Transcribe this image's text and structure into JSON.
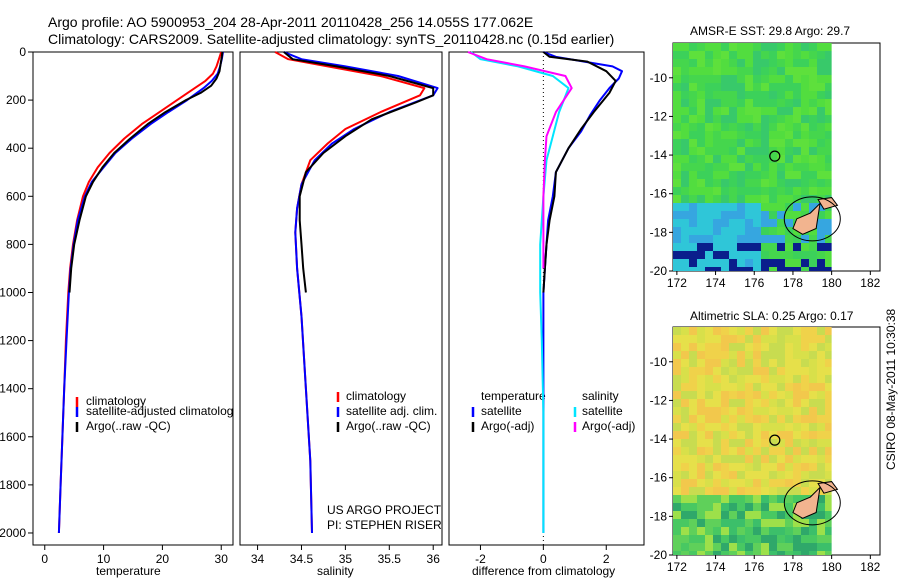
{
  "header": {
    "line1": "Argo profile: AO 5900953_204 28-Apr-2011 20110428_256 14.055S 177.062E",
    "line2": "Climatology: CARS2009. Satellite-adjusted climatology: synTS_20110428.nc (0.15d earlier)"
  },
  "credit": {
    "line1": "US ARGO PROJECT",
    "line2": "PI: STEPHEN RISER"
  },
  "stamp": "CSIRO 08-May-2011 10:30:38",
  "colors": {
    "climatology": "#ff0000",
    "satellite": "#0000ff",
    "argo": "#000000",
    "sal_satellite": "#00e5ff",
    "sal_argo": "#ff00ff",
    "marker": "#000000"
  },
  "chart_data": [
    {
      "type": "line",
      "id": "temperature",
      "xlabel": "temperature",
      "xlim": [
        -2,
        32
      ],
      "ylim": [
        2050,
        0
      ],
      "xticks": [
        0,
        10,
        20,
        30
      ],
      "xtick_labels": [
        "0",
        "10",
        "20",
        "30"
      ],
      "yticks": [
        0,
        200,
        400,
        600,
        800,
        1000,
        1200,
        1400,
        1600,
        1800,
        2000
      ],
      "ytick_labels": [
        "0",
        "200",
        "400",
        "600",
        "800",
        "1000",
        "1200",
        "1400",
        "1600",
        "1800",
        "2000"
      ],
      "legend": [
        "climatology",
        "satellite-adjusted climatolog",
        "Argo(..raw -QC)"
      ],
      "series": [
        {
          "name": "climatology",
          "color": "#ff0000",
          "points": [
            [
              30,
              0
            ],
            [
              29.6,
              30
            ],
            [
              29.2,
              60
            ],
            [
              28.6,
              90
            ],
            [
              27.3,
              120
            ],
            [
              25.5,
              150
            ],
            [
              22.5,
              200
            ],
            [
              19.5,
              250
            ],
            [
              16.5,
              300
            ],
            [
              13.5,
              360
            ],
            [
              11,
              420
            ],
            [
              9,
              480
            ],
            [
              7.5,
              540
            ],
            [
              6.5,
              600
            ],
            [
              5.5,
              700
            ],
            [
              4.8,
              800
            ],
            [
              4.3,
              900
            ],
            [
              4,
              1000
            ],
            [
              3.6,
              1200
            ],
            [
              3.3,
              1400
            ],
            [
              3,
              1600
            ],
            [
              2.7,
              1800
            ],
            [
              2.4,
              2000
            ]
          ]
        },
        {
          "name": "satellite-adjusted climatolog",
          "color": "#0000ff",
          "points": [
            [
              30.3,
              0
            ],
            [
              30.1,
              30
            ],
            [
              29.8,
              60
            ],
            [
              29.4,
              90
            ],
            [
              28.4,
              120
            ],
            [
              27,
              150
            ],
            [
              24.2,
              200
            ],
            [
              21,
              250
            ],
            [
              18,
              300
            ],
            [
              14.8,
              360
            ],
            [
              12,
              420
            ],
            [
              10,
              480
            ],
            [
              8,
              540
            ],
            [
              6.8,
              600
            ],
            [
              5.6,
              700
            ],
            [
              4.9,
              800
            ],
            [
              4.4,
              900
            ],
            [
              4.1,
              1000
            ],
            [
              3.7,
              1200
            ],
            [
              3.3,
              1400
            ],
            [
              3,
              1600
            ],
            [
              2.7,
              1800
            ],
            [
              2.4,
              2000
            ]
          ]
        },
        {
          "name": "Argo(..raw -QC)",
          "color": "#000000",
          "points": [
            [
              30.2,
              0
            ],
            [
              30.1,
              20
            ],
            [
              29.9,
              50
            ],
            [
              29.7,
              80
            ],
            [
              29.2,
              110
            ],
            [
              28.3,
              140
            ],
            [
              26.5,
              170
            ],
            [
              24,
              200
            ],
            [
              20.5,
              250
            ],
            [
              17.5,
              300
            ],
            [
              14.5,
              360
            ],
            [
              11.8,
              420
            ],
            [
              9.8,
              480
            ],
            [
              8.2,
              540
            ],
            [
              7,
              600
            ],
            [
              5.9,
              700
            ],
            [
              5,
              800
            ],
            [
              4.5,
              900
            ],
            [
              4.2,
              1000
            ]
          ]
        }
      ]
    },
    {
      "type": "line",
      "id": "salinity",
      "xlabel": "salinity",
      "xlim": [
        33.8,
        36.1
      ],
      "ylim": [
        2050,
        0
      ],
      "xticks": [
        34,
        34.5,
        35,
        35.5,
        36
      ],
      "xtick_labels": [
        "34",
        "34.5",
        "35",
        "35.5",
        "36"
      ],
      "legend": [
        "climatology",
        "satellite adj. clim.",
        "Argo(..raw -QC)"
      ],
      "series": [
        {
          "name": "climatology",
          "color": "#ff0000",
          "points": [
            [
              34.2,
              0
            ],
            [
              34.35,
              30
            ],
            [
              34.8,
              60
            ],
            [
              35.4,
              100
            ],
            [
              35.9,
              150
            ],
            [
              35.85,
              180
            ],
            [
              35.4,
              250
            ],
            [
              35.0,
              320
            ],
            [
              34.8,
              380
            ],
            [
              34.6,
              450
            ],
            [
              34.5,
              550
            ],
            [
              34.45,
              650
            ],
            [
              34.43,
              750
            ],
            [
              34.45,
              900
            ],
            [
              34.5,
              1100
            ],
            [
              34.55,
              1400
            ],
            [
              34.6,
              1700
            ],
            [
              34.62,
              2000
            ]
          ]
        },
        {
          "name": "satellite adj. clim.",
          "color": "#0000ff",
          "points": [
            [
              34.3,
              0
            ],
            [
              34.5,
              30
            ],
            [
              35.0,
              60
            ],
            [
              35.6,
              100
            ],
            [
              36.05,
              150
            ],
            [
              36.0,
              180
            ],
            [
              35.5,
              250
            ],
            [
              35.1,
              320
            ],
            [
              34.85,
              380
            ],
            [
              34.65,
              450
            ],
            [
              34.5,
              550
            ],
            [
              34.45,
              650
            ],
            [
              34.43,
              750
            ],
            [
              34.45,
              900
            ],
            [
              34.5,
              1100
            ],
            [
              34.55,
              1400
            ],
            [
              34.6,
              1700
            ],
            [
              34.62,
              2000
            ]
          ]
        },
        {
          "name": "Argo(..raw -QC)",
          "color": "#000000",
          "points": [
            [
              34.3,
              0
            ],
            [
              34.4,
              30
            ],
            [
              34.9,
              60
            ],
            [
              35.5,
              100
            ],
            [
              36.0,
              150
            ],
            [
              36.0,
              180
            ],
            [
              35.8,
              210
            ],
            [
              35.3,
              280
            ],
            [
              35.0,
              350
            ],
            [
              34.75,
              420
            ],
            [
              34.55,
              500
            ],
            [
              34.48,
              600
            ],
            [
              34.48,
              700
            ],
            [
              34.5,
              800
            ],
            [
              34.52,
              900
            ],
            [
              34.55,
              1000
            ]
          ]
        }
      ]
    },
    {
      "type": "line",
      "id": "difference",
      "xlabel": "difference from climatology",
      "xlim": [
        -3,
        3.2
      ],
      "ylim": [
        2050,
        0
      ],
      "xticks": [
        -2,
        0,
        2
      ],
      "xtick_labels": [
        "-2",
        "0",
        "2"
      ],
      "legend_groups": [
        {
          "title": "temperature",
          "items": [
            "satellite",
            "Argo(-adj)"
          ]
        },
        {
          "title": "salinity",
          "items": [
            "satellite",
            "Argo(-adj)"
          ]
        }
      ],
      "series": [
        {
          "name": "temperature satellite",
          "color": "#0000ff",
          "points": [
            [
              0,
              0
            ],
            [
              0.4,
              20
            ],
            [
              1.3,
              40
            ],
            [
              2.2,
              60
            ],
            [
              2.5,
              80
            ],
            [
              2.4,
              110
            ],
            [
              2.1,
              150
            ],
            [
              1.8,
              200
            ],
            [
              1.5,
              260
            ],
            [
              1.2,
              330
            ],
            [
              0.8,
              400
            ],
            [
              0.4,
              500
            ],
            [
              0.3,
              600
            ],
            [
              0.15,
              700
            ],
            [
              0.1,
              800
            ],
            [
              0.05,
              900
            ],
            [
              0,
              1000
            ],
            [
              0,
              1200
            ],
            [
              0,
              2000
            ]
          ]
        },
        {
          "name": "temperature Argo(-adj)",
          "color": "#000000",
          "points": [
            [
              0,
              0
            ],
            [
              0.2,
              20
            ],
            [
              1.4,
              40
            ],
            [
              2.0,
              80
            ],
            [
              2.3,
              120
            ],
            [
              2.1,
              170
            ],
            [
              1.6,
              250
            ],
            [
              1.2,
              320
            ],
            [
              0.8,
              400
            ],
            [
              0.4,
              500
            ],
            [
              0.35,
              600
            ],
            [
              0.2,
              700
            ],
            [
              0.1,
              800
            ],
            [
              0.05,
              900
            ],
            [
              0,
              1000
            ]
          ]
        },
        {
          "name": "salinity satellite",
          "color": "#00e5ff",
          "points": [
            [
              -2.3,
              0
            ],
            [
              -2.0,
              30
            ],
            [
              -0.8,
              60
            ],
            [
              0.3,
              100
            ],
            [
              0.8,
              150
            ],
            [
              0.5,
              250
            ],
            [
              0.3,
              350
            ],
            [
              0.1,
              450
            ],
            [
              0,
              600
            ],
            [
              -0.1,
              800
            ],
            [
              -0.1,
              1000
            ],
            [
              -0.05,
              1200
            ],
            [
              0,
              1500
            ],
            [
              0,
              2000
            ]
          ]
        },
        {
          "name": "salinity Argo(-adj)",
          "color": "#ff00ff",
          "points": [
            [
              -2.4,
              0
            ],
            [
              -1.8,
              30
            ],
            [
              -0.6,
              60
            ],
            [
              0.7,
              100
            ],
            [
              0.9,
              150
            ],
            [
              0.4,
              250
            ],
            [
              0.1,
              350
            ],
            [
              0.05,
              450
            ],
            [
              0,
              600
            ],
            [
              0,
              800
            ],
            [
              0,
              900
            ]
          ]
        }
      ]
    },
    {
      "type": "heatmap",
      "id": "sst",
      "title": "AMSR-E SST: 29.8 Argo: 29.7",
      "xlim": [
        171.8,
        182.5
      ],
      "ylim": [
        -20,
        -8.2
      ],
      "xticks": [
        172,
        174,
        176,
        178,
        180,
        182
      ],
      "xtick_labels": [
        "172",
        "174",
        "176",
        "178",
        "180",
        "182"
      ],
      "yticks": [
        -10,
        -12,
        -14,
        -16,
        -18,
        -20
      ],
      "ytick_labels": [
        "-10",
        "-12",
        "-14",
        "-16",
        "-18",
        "-20"
      ],
      "argo_position": [
        177.062,
        -14.055
      ]
    },
    {
      "type": "heatmap",
      "id": "sla",
      "title": "Altimetric SLA: 0.25 Argo: 0.17",
      "xlim": [
        171.8,
        182.5
      ],
      "ylim": [
        -20,
        -8.2
      ],
      "xticks": [
        172,
        174,
        176,
        178,
        180,
        182
      ],
      "xtick_labels": [
        "172",
        "174",
        "176",
        "178",
        "180",
        "182"
      ],
      "yticks": [
        -10,
        -12,
        -14,
        -16,
        -18,
        -20
      ],
      "ytick_labels": [
        "-10",
        "-12",
        "-14",
        "-16",
        "-18",
        "-20"
      ],
      "argo_position": [
        177.062,
        -14.055
      ]
    }
  ]
}
